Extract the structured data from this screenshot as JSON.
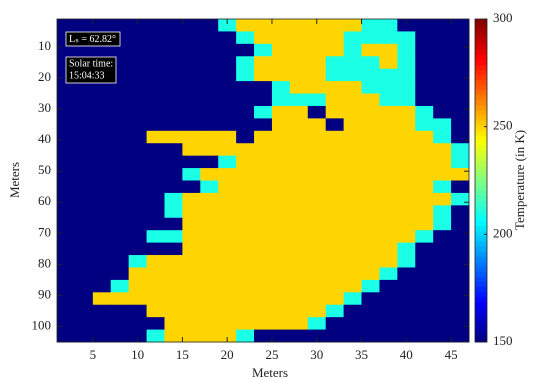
{
  "chart_data": {
    "type": "heatmap",
    "xlabel": "Meters",
    "ylabel": "Meters",
    "xlim": [
      1,
      47
    ],
    "ylim": [
      1,
      105
    ],
    "y_reversed": true,
    "xticks": [
      5,
      10,
      15,
      20,
      25,
      30,
      35,
      40,
      45
    ],
    "yticks": [
      10,
      20,
      30,
      40,
      50,
      60,
      70,
      80,
      90,
      100
    ],
    "colormap": "jet",
    "clim": [
      150,
      300
    ],
    "colorbar_label": "Temperature (in K)",
    "colorbar_ticks": [
      150,
      200,
      250,
      300
    ],
    "annotations": [
      "Lₛ = 62.82°",
      "Solar time:",
      "15:04:33"
    ],
    "z": [
      [
        150,
        150,
        150,
        150,
        150,
        150,
        150,
        150,
        150,
        210,
        250,
        250,
        250,
        250,
        250,
        250,
        250,
        210,
        210,
        150,
        150,
        150,
        150
      ],
      [
        150,
        150,
        150,
        150,
        150,
        150,
        150,
        150,
        150,
        150,
        210,
        250,
        250,
        250,
        250,
        250,
        210,
        210,
        210,
        210,
        150,
        150,
        150
      ],
      [
        150,
        150,
        150,
        150,
        150,
        150,
        150,
        150,
        150,
        150,
        150,
        210,
        250,
        250,
        250,
        250,
        210,
        250,
        250,
        210,
        150,
        150,
        150
      ],
      [
        150,
        150,
        150,
        150,
        150,
        150,
        150,
        150,
        150,
        150,
        210,
        250,
        250,
        250,
        250,
        210,
        210,
        210,
        250,
        210,
        150,
        150,
        150
      ],
      [
        150,
        150,
        150,
        150,
        150,
        150,
        150,
        150,
        150,
        150,
        210,
        250,
        250,
        250,
        250,
        210,
        210,
        210,
        210,
        210,
        150,
        150,
        150
      ],
      [
        150,
        150,
        150,
        150,
        150,
        150,
        150,
        150,
        150,
        150,
        150,
        150,
        210,
        250,
        250,
        250,
        250,
        210,
        210,
        210,
        150,
        150,
        150
      ],
      [
        150,
        150,
        150,
        150,
        150,
        150,
        150,
        150,
        150,
        150,
        150,
        150,
        210,
        210,
        210,
        250,
        250,
        250,
        210,
        210,
        150,
        150,
        150
      ],
      [
        150,
        150,
        150,
        150,
        150,
        150,
        150,
        150,
        150,
        150,
        150,
        210,
        250,
        250,
        150,
        250,
        250,
        250,
        250,
        250,
        210,
        150,
        150
      ],
      [
        150,
        150,
        150,
        150,
        150,
        150,
        150,
        150,
        150,
        150,
        150,
        150,
        250,
        250,
        250,
        150,
        250,
        250,
        250,
        250,
        210,
        210,
        150
      ],
      [
        150,
        150,
        150,
        150,
        150,
        250,
        250,
        250,
        250,
        250,
        150,
        250,
        250,
        250,
        250,
        250,
        250,
        250,
        250,
        250,
        250,
        210,
        150
      ],
      [
        150,
        150,
        150,
        150,
        150,
        150,
        150,
        250,
        250,
        250,
        250,
        250,
        250,
        250,
        250,
        250,
        250,
        250,
        250,
        250,
        250,
        250,
        210
      ],
      [
        150,
        150,
        150,
        150,
        150,
        150,
        150,
        150,
        150,
        210,
        250,
        250,
        250,
        250,
        250,
        250,
        250,
        250,
        250,
        250,
        250,
        250,
        210
      ],
      [
        150,
        150,
        150,
        150,
        150,
        150,
        150,
        210,
        250,
        250,
        250,
        250,
        250,
        250,
        250,
        250,
        250,
        250,
        250,
        250,
        250,
        250,
        250
      ],
      [
        150,
        150,
        150,
        150,
        150,
        150,
        150,
        150,
        210,
        250,
        250,
        250,
        250,
        250,
        250,
        250,
        250,
        250,
        250,
        250,
        250,
        210,
        150
      ],
      [
        150,
        150,
        150,
        150,
        150,
        150,
        210,
        250,
        250,
        250,
        250,
        250,
        250,
        250,
        250,
        250,
        250,
        250,
        250,
        250,
        250,
        250,
        210
      ],
      [
        150,
        150,
        150,
        150,
        150,
        150,
        210,
        250,
        250,
        250,
        250,
        250,
        250,
        250,
        250,
        250,
        250,
        250,
        250,
        250,
        250,
        210,
        150
      ],
      [
        150,
        150,
        150,
        150,
        150,
        150,
        150,
        250,
        250,
        250,
        250,
        250,
        250,
        250,
        250,
        250,
        250,
        250,
        250,
        250,
        250,
        210,
        150
      ],
      [
        150,
        150,
        150,
        150,
        150,
        210,
        210,
        250,
        250,
        250,
        250,
        250,
        250,
        250,
        250,
        250,
        250,
        250,
        250,
        250,
        210,
        150,
        150
      ],
      [
        150,
        150,
        150,
        150,
        150,
        150,
        150,
        250,
        250,
        250,
        250,
        250,
        250,
        250,
        250,
        250,
        250,
        250,
        250,
        210,
        150,
        150,
        150
      ],
      [
        150,
        150,
        150,
        150,
        210,
        250,
        250,
        250,
        250,
        250,
        250,
        250,
        250,
        250,
        250,
        250,
        250,
        250,
        250,
        210,
        150,
        150,
        150
      ],
      [
        150,
        150,
        150,
        150,
        250,
        250,
        250,
        250,
        250,
        250,
        250,
        250,
        250,
        250,
        250,
        250,
        250,
        250,
        210,
        150,
        150,
        150,
        150
      ],
      [
        150,
        150,
        150,
        210,
        250,
        250,
        250,
        250,
        250,
        250,
        250,
        250,
        250,
        250,
        250,
        250,
        250,
        210,
        150,
        150,
        150,
        150,
        150
      ],
      [
        150,
        150,
        250,
        250,
        250,
        250,
        250,
        250,
        250,
        250,
        250,
        250,
        250,
        250,
        250,
        250,
        210,
        150,
        150,
        150,
        150,
        150,
        150
      ],
      [
        150,
        150,
        150,
        150,
        150,
        250,
        250,
        250,
        250,
        250,
        250,
        250,
        250,
        250,
        250,
        210,
        150,
        150,
        150,
        150,
        150,
        150,
        150
      ],
      [
        150,
        150,
        150,
        150,
        150,
        150,
        250,
        250,
        250,
        250,
        250,
        250,
        250,
        250,
        210,
        150,
        150,
        150,
        150,
        150,
        150,
        150,
        150
      ],
      [
        150,
        150,
        150,
        150,
        150,
        210,
        250,
        250,
        250,
        250,
        210,
        150,
        150,
        150,
        150,
        150,
        150,
        150,
        150,
        150,
        150,
        150,
        150
      ]
    ]
  }
}
